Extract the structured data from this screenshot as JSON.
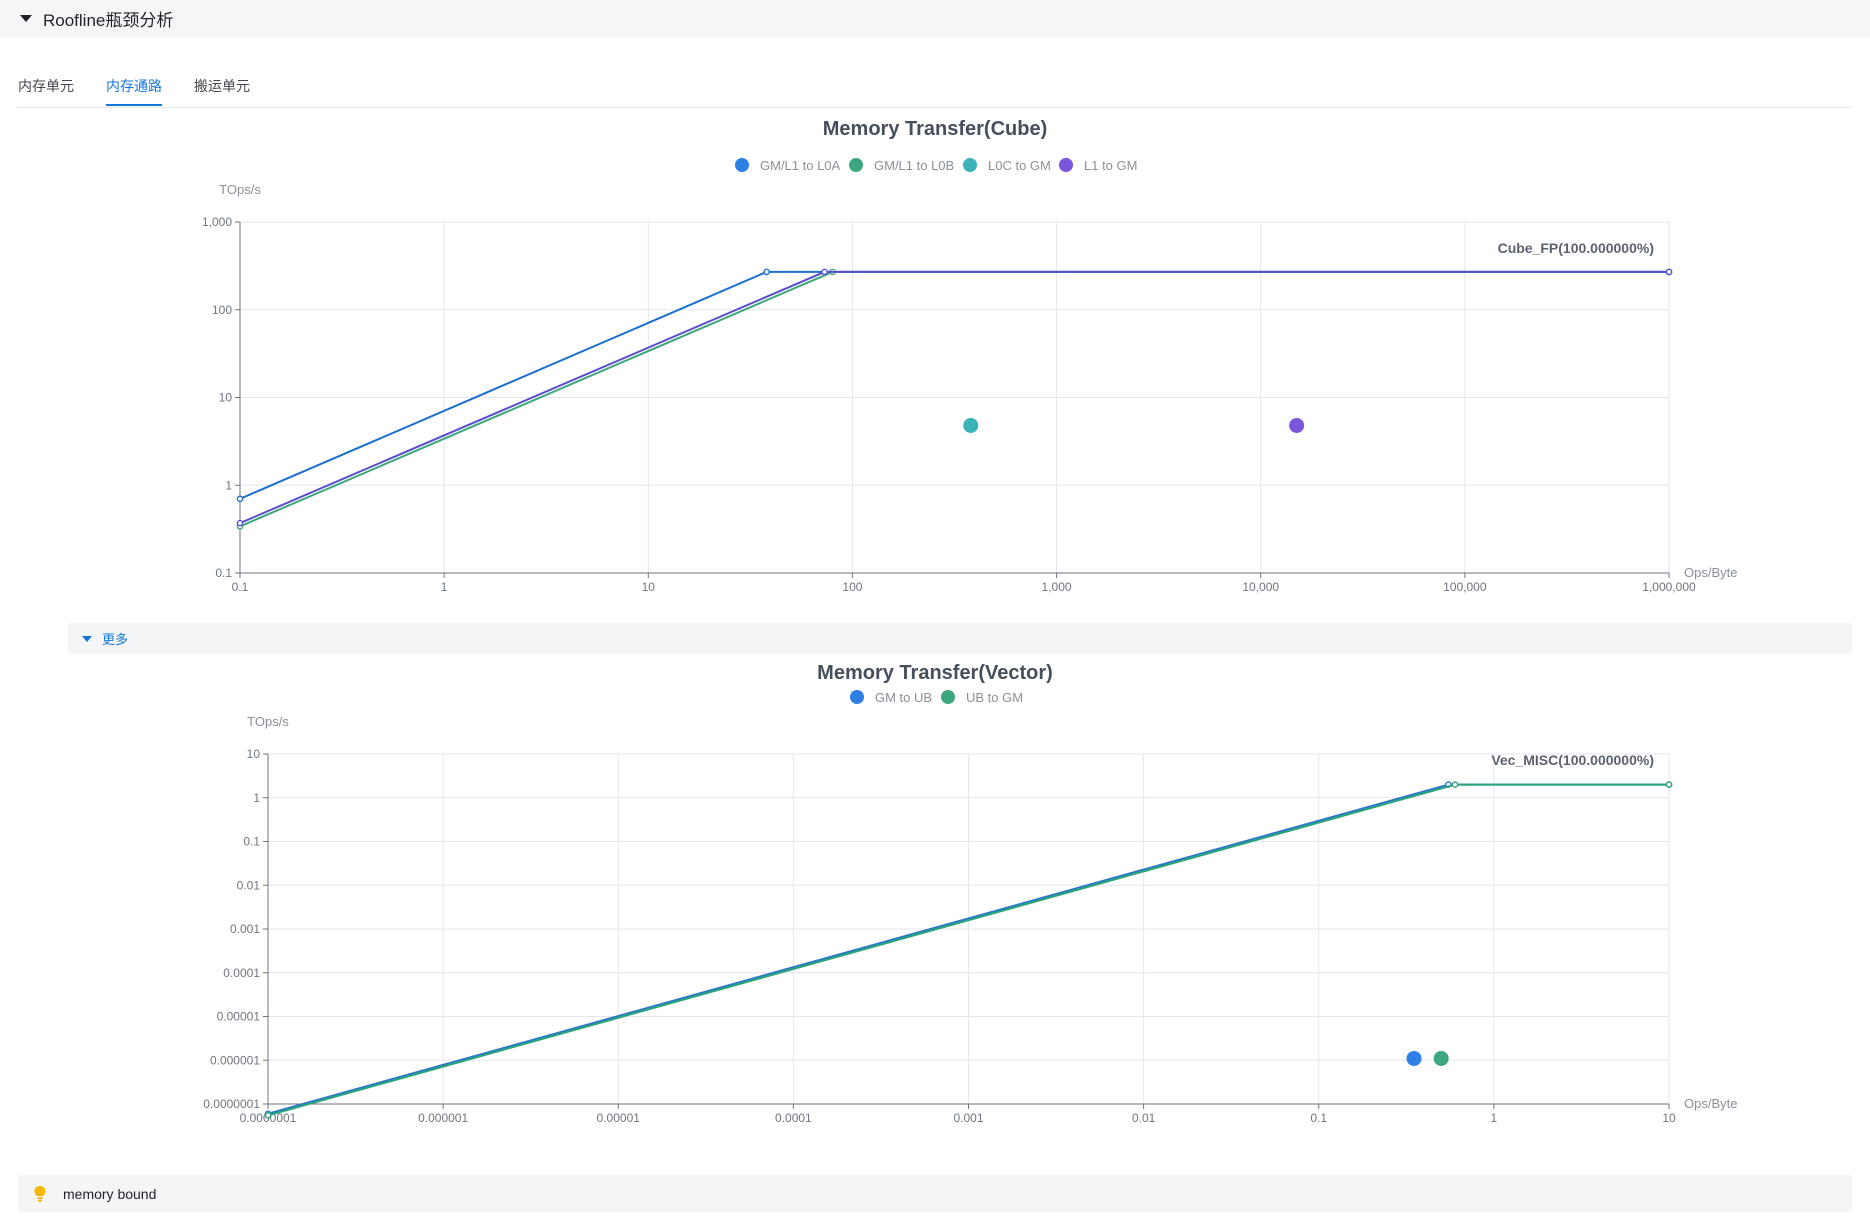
{
  "section": {
    "title": "Roofline瓶颈分析"
  },
  "tabs": [
    {
      "label": "内存单元",
      "active": false
    },
    {
      "label": "内存通路",
      "active": true
    },
    {
      "label": "搬运单元",
      "active": false
    }
  ],
  "more": {
    "label": "更多"
  },
  "hint": {
    "icon": "lightbulb-icon",
    "text": "memory bound",
    "icon_color": "#f5b800"
  },
  "chart_data": [
    {
      "type": "scatter",
      "title": "Memory Transfer(Cube)",
      "xlabel": "Ops/Byte",
      "ylabel": "TOps/s",
      "xscale": "log",
      "yscale": "log",
      "xlim": [
        0.1,
        1000000
      ],
      "ylim": [
        0.1,
        1000
      ],
      "xticks": [
        0.1,
        1,
        10,
        100,
        1000,
        10000,
        100000,
        1000000
      ],
      "xtick_labels": [
        "0.1",
        "1",
        "10",
        "100",
        "1,000",
        "10,000",
        "100,000",
        "1,000,000"
      ],
      "yticks": [
        0.1,
        1,
        10,
        100,
        1000
      ],
      "ytick_labels": [
        "0.1",
        "1",
        "10",
        "100",
        "1,000"
      ],
      "grid": true,
      "legend_position": "top-center",
      "series": [
        {
          "name": "GM/L1 to L0A",
          "color": "#2f80e4",
          "line_color": "#1d6fd0",
          "roofline": [
            [
              0.1,
              0.7
            ],
            [
              38,
              270
            ],
            [
              1000000,
              270
            ]
          ],
          "points": []
        },
        {
          "name": "GM/L1 to L0B",
          "color": "#3ea67e",
          "line_color": "#3ea67e",
          "roofline": [
            [
              0.1,
              0.34
            ],
            [
              80,
              270
            ],
            [
              1000000,
              270
            ]
          ],
          "points": []
        },
        {
          "name": "L0C to GM",
          "color": "#3bb3b8",
          "line_color": "#3bb3b8",
          "roofline": [],
          "points": [
            [
              380,
              4.8
            ]
          ]
        },
        {
          "name": "L1 to GM",
          "color": "#7b55dc",
          "line_color": "#5a4fcf",
          "roofline": [
            [
              0.1,
              0.37
            ],
            [
              73,
              270
            ],
            [
              1000000,
              270
            ]
          ],
          "points": [
            [
              15000,
              4.8
            ]
          ]
        }
      ],
      "annotations": [
        {
          "text": "Cube_FP(100.000000%)"
        }
      ]
    },
    {
      "type": "scatter",
      "title": "Memory Transfer(Vector)",
      "xlabel": "Ops/Byte",
      "ylabel": "TOps/s",
      "xscale": "log",
      "yscale": "log",
      "xlim": [
        1e-07,
        10
      ],
      "ylim": [
        1e-07,
        10
      ],
      "xticks": [
        1e-07,
        1e-06,
        1e-05,
        0.0001,
        0.001,
        0.01,
        0.1,
        1,
        10
      ],
      "xtick_labels": [
        "0.0000001",
        "0.000001",
        "0.00001",
        "0.0001",
        "0.001",
        "0.01",
        "0.1",
        "1",
        "10"
      ],
      "yticks": [
        1e-07,
        1e-06,
        1e-05,
        0.0001,
        0.001,
        0.01,
        0.1,
        1,
        10
      ],
      "ytick_labels": [
        "0.0000001",
        "0.000001",
        "0.00001",
        "0.0001",
        "0.001",
        "0.01",
        "0.1",
        "1",
        "10"
      ],
      "grid": true,
      "legend_position": "top-center",
      "series": [
        {
          "name": "GM to UB",
          "color": "#2f80e4",
          "line_color": "#2a78c8",
          "roofline": [
            [
              1e-07,
              6e-08
            ],
            [
              0.55,
              2.0
            ],
            [
              10,
              2.0
            ]
          ],
          "points": [
            [
              0.35,
              1.1e-06
            ]
          ]
        },
        {
          "name": "UB to GM",
          "color": "#3ea67e",
          "line_color": "#2aa47a",
          "roofline": [
            [
              1e-07,
              5.5e-08
            ],
            [
              0.6,
              2.0
            ],
            [
              10,
              2.0
            ]
          ],
          "points": [
            [
              0.5,
              1.1e-06
            ]
          ]
        }
      ],
      "annotations": [
        {
          "text": "Vec_MISC(100.000000%)"
        }
      ]
    }
  ]
}
